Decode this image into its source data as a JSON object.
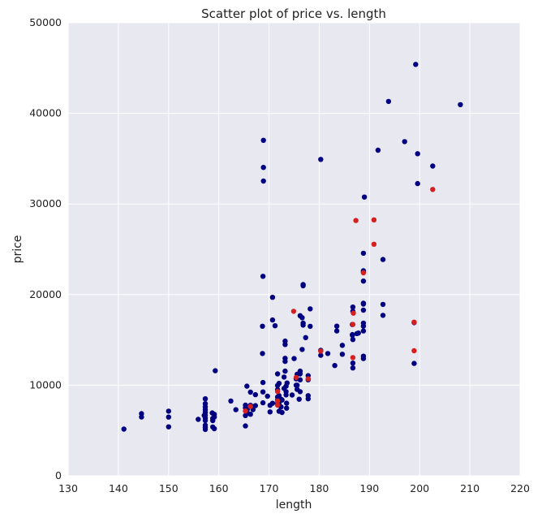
{
  "chart_data": {
    "type": "scatter",
    "title": "Scatter plot of price vs. length",
    "xlabel": "length",
    "ylabel": "price",
    "xlim": [
      130,
      220
    ],
    "ylim": [
      0,
      50000
    ],
    "xticks": [
      "130",
      "140",
      "150",
      "160",
      "170",
      "180",
      "190",
      "200",
      "210",
      "220"
    ],
    "yticks": [
      "0",
      "10000",
      "20000",
      "30000",
      "40000",
      "50000"
    ],
    "grid": true,
    "colors": {
      "background": "#e8e8f1",
      "grid": "#ffffff",
      "primary": "#000080",
      "highlight": "#d62020"
    },
    "series": [
      {
        "color": "#000080",
        "points": [
          [
            141.1,
            5151
          ],
          [
            144.6,
            6855
          ],
          [
            144.6,
            6488
          ],
          [
            150.0,
            7129
          ],
          [
            150.0,
            6479
          ],
          [
            150.0,
            5399
          ],
          [
            155.9,
            6229
          ],
          [
            157.1,
            6669
          ],
          [
            157.3,
            8495
          ],
          [
            157.3,
            7957
          ],
          [
            157.3,
            7609
          ],
          [
            157.3,
            7295
          ],
          [
            157.3,
            6989
          ],
          [
            157.3,
            6692
          ],
          [
            157.3,
            6377
          ],
          [
            157.3,
            6095
          ],
          [
            157.3,
            5572
          ],
          [
            157.3,
            5348
          ],
          [
            157.3,
            5118
          ],
          [
            158.7,
            6938
          ],
          [
            158.8,
            6338
          ],
          [
            158.8,
            6095
          ],
          [
            158.8,
            5389
          ],
          [
            159.1,
            6785
          ],
          [
            159.1,
            6488
          ],
          [
            159.1,
            5195
          ],
          [
            159.3,
            11595
          ],
          [
            162.4,
            8249
          ],
          [
            163.4,
            7295
          ],
          [
            165.3,
            7799
          ],
          [
            165.3,
            7499
          ],
          [
            165.3,
            6649
          ],
          [
            165.3,
            5499
          ],
          [
            165.6,
            9895
          ],
          [
            165.6,
            7198
          ],
          [
            165.7,
            7349
          ],
          [
            165.7,
            6918
          ],
          [
            166.3,
            9233
          ],
          [
            166.3,
            7775
          ],
          [
            166.3,
            6795
          ],
          [
            166.8,
            7609
          ],
          [
            166.8,
            7299
          ],
          [
            167.3,
            8948
          ],
          [
            167.3,
            7738
          ],
          [
            168.8,
            10295
          ],
          [
            168.8,
            9258
          ],
          [
            168.8,
            8058
          ],
          [
            168.7,
            13499
          ],
          [
            168.7,
            16503
          ],
          [
            168.8,
            22018
          ],
          [
            168.9,
            32528
          ],
          [
            168.9,
            34028
          ],
          [
            168.9,
            37028
          ],
          [
            169.7,
            8778
          ],
          [
            170.2,
            7775
          ],
          [
            170.2,
            7053
          ],
          [
            170.7,
            7999
          ],
          [
            171.2,
            16558
          ],
          [
            170.7,
            17199
          ],
          [
            170.7,
            19699
          ],
          [
            171.7,
            11245
          ],
          [
            171.7,
            9960
          ],
          [
            171.7,
            9495
          ],
          [
            171.7,
            8695
          ],
          [
            171.7,
            8358
          ],
          [
            171.7,
            7975
          ],
          [
            172.0,
            10198
          ],
          [
            172.0,
            8845
          ],
          [
            172.0,
            7995
          ],
          [
            172.0,
            7126
          ],
          [
            172.4,
            7603
          ],
          [
            172.4,
            8449
          ],
          [
            172.6,
            6989
          ],
          [
            172.6,
            8359
          ],
          [
            173.0,
            9639
          ],
          [
            173.0,
            10898
          ],
          [
            173.2,
            11549
          ],
          [
            173.2,
            12629
          ],
          [
            173.2,
            12964
          ],
          [
            173.2,
            14489
          ],
          [
            173.2,
            14869
          ],
          [
            173.4,
            9895
          ],
          [
            173.4,
            9279
          ],
          [
            173.4,
            8921
          ],
          [
            173.5,
            8013
          ],
          [
            173.5,
            7463
          ],
          [
            173.6,
            10245
          ],
          [
            174.6,
            8916
          ],
          [
            175.0,
            12940
          ],
          [
            175.4,
            9989
          ],
          [
            175.4,
            10698
          ],
          [
            175.6,
            11199
          ],
          [
            175.6,
            9988
          ],
          [
            175.6,
            9538
          ],
          [
            176.0,
            8449
          ],
          [
            176.2,
            9279
          ],
          [
            176.2,
            10595
          ],
          [
            176.2,
            11248
          ],
          [
            176.2,
            11549
          ],
          [
            176.2,
            17669
          ],
          [
            176.6,
            17450
          ],
          [
            176.6,
            13945
          ],
          [
            176.8,
            16630
          ],
          [
            176.8,
            16845
          ],
          [
            176.8,
            20970
          ],
          [
            176.8,
            21105
          ],
          [
            177.3,
            15250
          ],
          [
            177.8,
            11048
          ],
          [
            177.8,
            10595
          ],
          [
            177.8,
            8845
          ],
          [
            177.8,
            8495
          ],
          [
            178.2,
            16500
          ],
          [
            178.2,
            18420
          ],
          [
            180.3,
            13295
          ],
          [
            180.3,
            13845
          ],
          [
            180.3,
            34920
          ],
          [
            181.7,
            13495
          ],
          [
            183.1,
            12170
          ],
          [
            183.5,
            16515
          ],
          [
            183.5,
            15985
          ],
          [
            184.6,
            13415
          ],
          [
            184.6,
            14399
          ],
          [
            186.6,
            15510
          ],
          [
            186.6,
            15580
          ],
          [
            186.6,
            16695
          ],
          [
            186.7,
            18150
          ],
          [
            186.7,
            18620
          ],
          [
            186.7,
            11900
          ],
          [
            186.7,
            12440
          ],
          [
            186.7,
            15040
          ],
          [
            187.5,
            15690
          ],
          [
            187.8,
            15750
          ],
          [
            188.8,
            13200
          ],
          [
            188.8,
            12940
          ],
          [
            188.8,
            16515
          ],
          [
            188.8,
            16845
          ],
          [
            188.8,
            15985
          ],
          [
            188.8,
            18280
          ],
          [
            188.8,
            18950
          ],
          [
            188.8,
            19045
          ],
          [
            188.8,
            21485
          ],
          [
            188.8,
            22470
          ],
          [
            188.8,
            22625
          ],
          [
            188.8,
            24565
          ],
          [
            189.0,
            30760
          ],
          [
            191.7,
            35930
          ],
          [
            192.7,
            18920
          ],
          [
            192.7,
            17710
          ],
          [
            192.7,
            23875
          ],
          [
            193.8,
            41315
          ],
          [
            197.0,
            36880
          ],
          [
            198.9,
            12400
          ],
          [
            198.9,
            16900
          ],
          [
            199.2,
            45400
          ],
          [
            199.6,
            35550
          ],
          [
            199.6,
            32250
          ],
          [
            202.6,
            34184
          ],
          [
            208.1,
            40960
          ]
        ]
      },
      {
        "color": "#d62020",
        "points": [
          [
            165.3,
            7150
          ],
          [
            166.3,
            7650
          ],
          [
            171.7,
            9300
          ],
          [
            171.7,
            8250
          ],
          [
            171.7,
            7800
          ],
          [
            174.9,
            18150
          ],
          [
            175.4,
            10850
          ],
          [
            177.8,
            10700
          ],
          [
            180.3,
            13750
          ],
          [
            186.7,
            13050
          ],
          [
            186.7,
            16700
          ],
          [
            186.8,
            17950
          ],
          [
            187.3,
            28176
          ],
          [
            188.8,
            22400
          ],
          [
            190.9,
            25552
          ],
          [
            190.9,
            28248
          ],
          [
            198.9,
            16950
          ],
          [
            198.9,
            13800
          ],
          [
            202.6,
            31600
          ]
        ]
      }
    ]
  }
}
